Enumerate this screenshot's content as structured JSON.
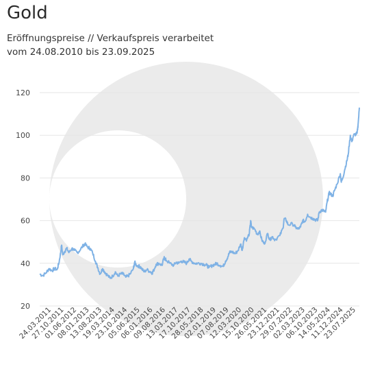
{
  "header": {
    "title": "Gold",
    "subtitle": "Eröffnungspreise // Verkaufspreis verarbeitet",
    "range": "vom 24.08.2010 bis 23.09.2025"
  },
  "colors": {
    "line": "#7fb2e5",
    "watermark": "#ebebeb",
    "grid": "#e6e6e6",
    "tick_text": "#444444"
  },
  "chart_data": {
    "type": "line",
    "title": "Gold",
    "xlabel": "",
    "ylabel": "",
    "ylim": [
      20,
      120
    ],
    "yticks": [
      20,
      40,
      60,
      80,
      100,
      120
    ],
    "xlim": [
      "2010-08-24",
      "2025-09-23"
    ],
    "grid": "horizontal",
    "xtick_labels": [
      "24.03.2011",
      "27.10.2011",
      "01.06.2012",
      "08.01.2013",
      "13.08.2013",
      "19.03.2014",
      "23.10.2014",
      "05.06.2015",
      "06.01.2016",
      "09.08.2016",
      "13.03.2017",
      "17.10.2017",
      "28.05.2018",
      "02.01.2019",
      "07.08.2019",
      "12.03.2020",
      "15.10.2020",
      "26.05.2021",
      "23.12.2021",
      "29.07.2022",
      "02.03.2023",
      "06.10.2023",
      "14.05.2024",
      "11.12.2024",
      "23.07.2025"
    ],
    "series": [
      {
        "values": [
          [
            "2010-08-24",
            35.0
          ],
          [
            "2010-10-15",
            34.2
          ],
          [
            "2010-12-10",
            35.5
          ],
          [
            "2011-02-01",
            37.5
          ],
          [
            "2011-03-24",
            36.5
          ],
          [
            "2011-05-05",
            37.5
          ],
          [
            "2011-06-20",
            37.0
          ],
          [
            "2011-07-20",
            40.0
          ],
          [
            "2011-08-20",
            45.0
          ],
          [
            "2011-09-05",
            48.5
          ],
          [
            "2011-09-25",
            44.0
          ],
          [
            "2011-10-27",
            45.5
          ],
          [
            "2011-12-01",
            47.0
          ],
          [
            "2012-01-10",
            45.0
          ],
          [
            "2012-03-01",
            47.0
          ],
          [
            "2012-04-15",
            46.0
          ],
          [
            "2012-06-01",
            45.0
          ],
          [
            "2012-07-15",
            46.0
          ],
          [
            "2012-09-15",
            48.5
          ],
          [
            "2012-10-10",
            49.0
          ],
          [
            "2012-12-01",
            47.5
          ],
          [
            "2013-01-08",
            47.0
          ],
          [
            "2013-02-20",
            45.0
          ],
          [
            "2013-04-10",
            41.0
          ],
          [
            "2013-05-20",
            38.0
          ],
          [
            "2013-06-30",
            35.0
          ],
          [
            "2013-08-13",
            37.5
          ],
          [
            "2013-09-15",
            36.0
          ],
          [
            "2013-11-01",
            34.5
          ],
          [
            "2013-12-20",
            33.0
          ],
          [
            "2014-02-01",
            34.0
          ],
          [
            "2014-03-19",
            36.0
          ],
          [
            "2014-05-01",
            34.0
          ],
          [
            "2014-06-15",
            35.0
          ],
          [
            "2014-08-01",
            35.0
          ],
          [
            "2014-09-15",
            33.5
          ],
          [
            "2014-10-23",
            34.0
          ],
          [
            "2014-12-01",
            35.0
          ],
          [
            "2015-01-25",
            37.5
          ],
          [
            "2015-02-15",
            40.5
          ],
          [
            "2015-03-20",
            39.0
          ],
          [
            "2015-05-10",
            38.5
          ],
          [
            "2015-06-05",
            38.0
          ],
          [
            "2015-07-25",
            36.0
          ],
          [
            "2015-09-15",
            37.0
          ],
          [
            "2015-11-15",
            36.0
          ],
          [
            "2015-12-15",
            35.5
          ],
          [
            "2016-01-06",
            36.5
          ],
          [
            "2016-02-20",
            39.5
          ],
          [
            "2016-04-10",
            40.0
          ],
          [
            "2016-06-01",
            39.0
          ],
          [
            "2016-07-05",
            42.5
          ],
          [
            "2016-07-25",
            42.0
          ],
          [
            "2016-08-09",
            41.5
          ],
          [
            "2016-10-15",
            40.0
          ],
          [
            "2016-12-20",
            39.0
          ],
          [
            "2017-02-01",
            40.5
          ],
          [
            "2017-03-13",
            40.0
          ],
          [
            "2017-05-01",
            41.0
          ],
          [
            "2017-06-15",
            40.5
          ],
          [
            "2017-08-01",
            40.0
          ],
          [
            "2017-09-10",
            42.0
          ],
          [
            "2017-10-17",
            41.0
          ],
          [
            "2017-12-15",
            40.0
          ],
          [
            "2018-02-01",
            40.0
          ],
          [
            "2018-04-01",
            40.0
          ],
          [
            "2018-05-28",
            39.5
          ],
          [
            "2018-07-15",
            39.0
          ],
          [
            "2018-08-20",
            38.0
          ],
          [
            "2018-10-15",
            39.0
          ],
          [
            "2018-12-01",
            39.5
          ],
          [
            "2019-01-02",
            40.0
          ],
          [
            "2019-03-01",
            39.0
          ],
          [
            "2019-04-20",
            38.5
          ],
          [
            "2019-06-01",
            41.0
          ],
          [
            "2019-07-10",
            43.0
          ],
          [
            "2019-08-07",
            45.0
          ],
          [
            "2019-09-15",
            45.5
          ],
          [
            "2019-11-15",
            44.5
          ],
          [
            "2020-01-01",
            46.0
          ],
          [
            "2020-02-20",
            49.0
          ],
          [
            "2020-03-12",
            46.0
          ],
          [
            "2020-04-20",
            52.0
          ],
          [
            "2020-06-01",
            51.0
          ],
          [
            "2020-07-15",
            54.0
          ],
          [
            "2020-08-07",
            60.0
          ],
          [
            "2020-08-20",
            57.0
          ],
          [
            "2020-10-15",
            56.0
          ],
          [
            "2020-12-01",
            53.5
          ],
          [
            "2021-01-05",
            55.0
          ],
          [
            "2021-02-15",
            51.0
          ],
          [
            "2021-03-31",
            49.0
          ],
          [
            "2021-05-26",
            54.0
          ],
          [
            "2021-07-01",
            51.0
          ],
          [
            "2021-08-15",
            52.5
          ],
          [
            "2021-10-01",
            51.0
          ],
          [
            "2021-12-23",
            53.0
          ],
          [
            "2022-02-15",
            56.5
          ],
          [
            "2022-03-08",
            61.0
          ],
          [
            "2022-04-15",
            60.0
          ],
          [
            "2022-05-15",
            58.0
          ],
          [
            "2022-07-29",
            58.5
          ],
          [
            "2022-09-15",
            57.0
          ],
          [
            "2022-11-01",
            56.0
          ],
          [
            "2022-12-15",
            57.0
          ],
          [
            "2023-01-20",
            60.0
          ],
          [
            "2023-03-02",
            59.5
          ],
          [
            "2023-04-15",
            63.0
          ],
          [
            "2023-06-01",
            61.5
          ],
          [
            "2023-07-20",
            61.0
          ],
          [
            "2023-08-20",
            60.5
          ],
          [
            "2023-10-06",
            60.0
          ],
          [
            "2023-11-01",
            64.0
          ],
          [
            "2023-12-15",
            65.0
          ],
          [
            "2024-01-20",
            64.5
          ],
          [
            "2024-02-20",
            64.0
          ],
          [
            "2024-03-15",
            68.5
          ],
          [
            "2024-04-20",
            73.0
          ],
          [
            "2024-05-14",
            72.5
          ],
          [
            "2024-06-20",
            71.5
          ],
          [
            "2024-07-20",
            74.0
          ],
          [
            "2024-09-01",
            77.0
          ],
          [
            "2024-10-30",
            82.0
          ],
          [
            "2024-11-15",
            78.0
          ],
          [
            "2024-12-11",
            80.0
          ],
          [
            "2025-01-15",
            84.0
          ],
          [
            "2025-02-20",
            88.0
          ],
          [
            "2025-03-15",
            91.0
          ],
          [
            "2025-04-20",
            100.0
          ],
          [
            "2025-05-15",
            97.0
          ],
          [
            "2025-06-15",
            100.0
          ],
          [
            "2025-07-23",
            100.5
          ],
          [
            "2025-08-15",
            101.0
          ],
          [
            "2025-09-01",
            105.0
          ],
          [
            "2025-09-23",
            113.0
          ]
        ]
      }
    ]
  }
}
